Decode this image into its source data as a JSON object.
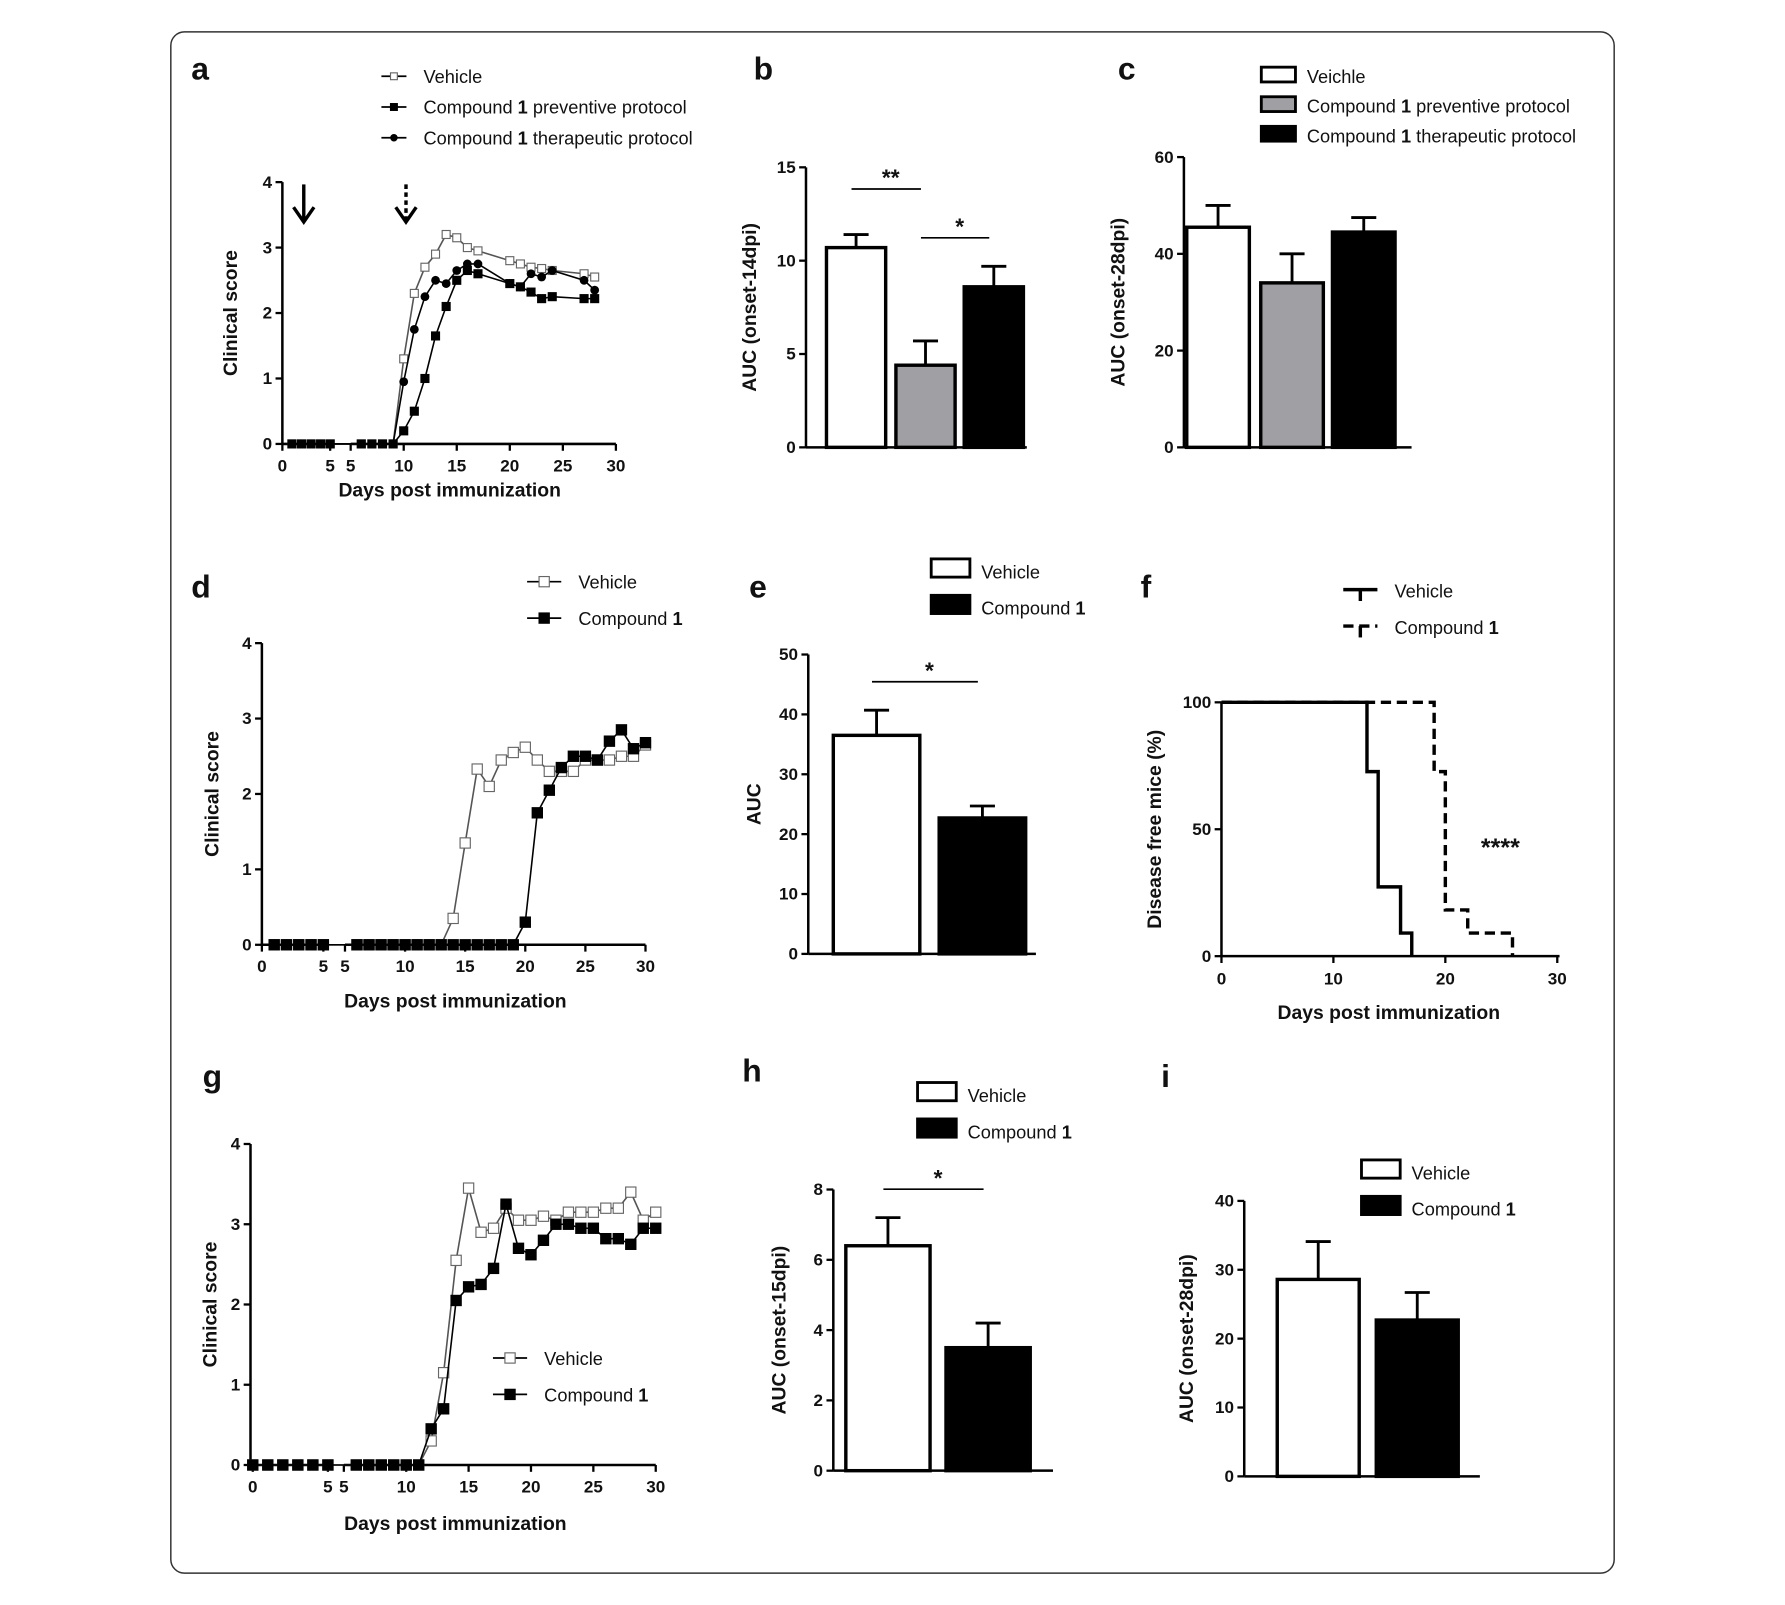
{
  "colors": {
    "white": "#ffffff",
    "grey": "#a0a0a4",
    "black": "#000000"
  },
  "chart_data": [
    {
      "panel": "a",
      "type": "line",
      "xlabel": "Days post immunization",
      "ylabel": "Clinical score",
      "ylim": [
        0,
        4
      ],
      "yticks": [
        0,
        1,
        2,
        3,
        4
      ],
      "xticks_seg1": [
        0,
        5
      ],
      "xticks_seg2": [
        5,
        10,
        15,
        20,
        25,
        30
      ],
      "axis_break": true,
      "arrows": [
        {
          "day": 2,
          "style": "solid"
        },
        {
          "day": 10,
          "style": "dashed"
        }
      ],
      "series": [
        {
          "name": "Vehicle",
          "marker": "open-square",
          "x": [
            1,
            2,
            3,
            4,
            5,
            6,
            7,
            8,
            9,
            10,
            11,
            12,
            13,
            14,
            15,
            16,
            17,
            20,
            21,
            22,
            23,
            24,
            27,
            28
          ],
          "y": [
            0,
            0,
            0,
            0,
            0,
            0,
            0,
            0,
            0,
            1.3,
            2.3,
            2.7,
            2.9,
            3.2,
            3.15,
            3.0,
            2.95,
            2.8,
            2.75,
            2.7,
            2.68,
            2.65,
            2.6,
            2.55
          ]
        },
        {
          "name": "Compound 1 preventive protocol",
          "marker": "filled-square",
          "x": [
            1,
            2,
            3,
            4,
            5,
            6,
            7,
            8,
            9,
            10,
            11,
            12,
            13,
            14,
            15,
            16,
            17,
            20,
            21,
            22,
            23,
            24,
            27,
            28
          ],
          "y": [
            0,
            0,
            0,
            0,
            0,
            0,
            0,
            0,
            0,
            0.2,
            0.5,
            1.0,
            1.65,
            2.1,
            2.5,
            2.65,
            2.6,
            2.45,
            2.4,
            2.32,
            2.22,
            2.25,
            2.22,
            2.22
          ]
        },
        {
          "name": "Compound 1 therapeutic protocol",
          "marker": "filled-circle",
          "x": [
            1,
            2,
            3,
            4,
            5,
            6,
            7,
            8,
            9,
            10,
            11,
            12,
            13,
            14,
            15,
            16,
            17,
            20,
            21,
            22,
            23,
            24,
            27,
            28
          ],
          "y": [
            0,
            0,
            0,
            0,
            0,
            0,
            0,
            0,
            0,
            0.95,
            1.75,
            2.25,
            2.5,
            2.45,
            2.65,
            2.75,
            2.75,
            2.45,
            2.4,
            2.6,
            2.55,
            2.65,
            2.5,
            2.35
          ]
        }
      ]
    },
    {
      "panel": "b",
      "type": "bar",
      "ylabel": "AUC (onset-14dpi)",
      "ylim": [
        0,
        15
      ],
      "yticks": [
        0,
        5,
        10,
        15
      ],
      "series": [
        {
          "name": "Vehicle",
          "value": 10.7,
          "error": 0.7,
          "color": "#ffffff"
        },
        {
          "name": "Compound 1 preventive protocol",
          "value": 4.4,
          "error": 1.3,
          "color": "#a0a0a4"
        },
        {
          "name": "Compound 1 therapeutic protocol",
          "value": 8.6,
          "error": 1.1,
          "color": "#000000"
        }
      ],
      "significance": [
        {
          "from": 0,
          "to": 1,
          "label": "**"
        },
        {
          "from": 1,
          "to": 2,
          "label": "*"
        }
      ]
    },
    {
      "panel": "c",
      "type": "bar",
      "ylabel": "AUC (onset-28dpi)",
      "ylim": [
        0,
        60
      ],
      "yticks": [
        0,
        20,
        40,
        60
      ],
      "series": [
        {
          "name": "Veichle",
          "value": 45.5,
          "error": 4.5,
          "color": "#ffffff"
        },
        {
          "name": "Compound 1 preventive protocol",
          "value": 34,
          "error": 6,
          "color": "#a0a0a4"
        },
        {
          "name": "Compound 1 therapeutic protocol",
          "value": 44.5,
          "error": 3,
          "color": "#000000"
        }
      ],
      "significance": []
    },
    {
      "panel": "d",
      "type": "line",
      "xlabel": "Days post immunization",
      "ylabel": "Clinical score",
      "ylim": [
        0,
        4
      ],
      "yticks": [
        0,
        1,
        2,
        3,
        4
      ],
      "xticks_seg1": [
        0,
        5
      ],
      "xticks_seg2": [
        5,
        10,
        15,
        20,
        25,
        30
      ],
      "axis_break": true,
      "series": [
        {
          "name": "Vehicle",
          "marker": "open-square",
          "x": [
            1,
            2,
            3,
            4,
            5,
            6,
            7,
            8,
            9,
            10,
            11,
            12,
            13,
            14,
            15,
            16,
            17,
            18,
            19,
            20,
            21,
            22,
            23,
            24,
            25,
            26,
            27,
            28,
            29,
            30
          ],
          "y": [
            0,
            0,
            0,
            0,
            0,
            0,
            0,
            0,
            0,
            0,
            0,
            0,
            0,
            0.35,
            1.35,
            2.33,
            2.1,
            2.45,
            2.55,
            2.62,
            2.45,
            2.3,
            2.3,
            2.3,
            2.45,
            2.45,
            2.45,
            2.5,
            2.5,
            2.65
          ]
        },
        {
          "name": "Compound 1",
          "marker": "filled-square",
          "x": [
            1,
            2,
            3,
            4,
            5,
            6,
            7,
            8,
            9,
            10,
            11,
            12,
            13,
            14,
            15,
            16,
            17,
            18,
            19,
            20,
            21,
            22,
            23,
            24,
            25,
            26,
            27,
            28,
            29,
            30
          ],
          "y": [
            0,
            0,
            0,
            0,
            0,
            0,
            0,
            0,
            0,
            0,
            0,
            0,
            0,
            0,
            0,
            0,
            0,
            0,
            0,
            0.3,
            1.75,
            2.05,
            2.35,
            2.5,
            2.5,
            2.45,
            2.7,
            2.85,
            2.6,
            2.68
          ]
        }
      ]
    },
    {
      "panel": "e",
      "type": "bar",
      "ylabel": "AUC",
      "ylim": [
        0,
        50
      ],
      "yticks": [
        0,
        10,
        20,
        30,
        40,
        50
      ],
      "series": [
        {
          "name": "Vehicle",
          "value": 36.5,
          "error": 4.2,
          "color": "#ffffff"
        },
        {
          "name": "Compound 1",
          "value": 22.7,
          "error": 2,
          "color": "#000000"
        }
      ],
      "significance": [
        {
          "from": 0,
          "to": 1,
          "label": "*"
        }
      ]
    },
    {
      "panel": "f",
      "type": "survival",
      "xlabel": "Days post immunization",
      "ylabel": "Disease free mice (%)",
      "xlim": [
        0,
        30
      ],
      "ylim": [
        0,
        100
      ],
      "xticks": [
        0,
        10,
        20,
        30
      ],
      "yticks": [
        0,
        50,
        100
      ],
      "annotation": "****",
      "series": [
        {
          "name": "Vehicle",
          "style": "solid",
          "x": [
            0,
            13,
            14,
            16,
            17
          ],
          "y": [
            100,
            72.7,
            27.3,
            9.1,
            0
          ]
        },
        {
          "name": "Compound 1",
          "style": "dashed",
          "x": [
            0,
            19,
            20,
            22,
            26
          ],
          "y": [
            100,
            72.7,
            18.2,
            9.1,
            0
          ]
        }
      ]
    },
    {
      "panel": "g",
      "type": "line",
      "xlabel": "Days post immunization",
      "ylabel": "Clinical score",
      "ylim": [
        0,
        4
      ],
      "yticks": [
        0,
        1,
        2,
        3,
        4
      ],
      "xticks_seg1": [
        0,
        5
      ],
      "xticks_seg2": [
        5,
        10,
        15,
        20,
        25,
        30
      ],
      "axis_break": true,
      "series": [
        {
          "name": "Vehicle",
          "marker": "open-square",
          "x": [
            0,
            1,
            2,
            3,
            4,
            5,
            6,
            7,
            8,
            9,
            10,
            11,
            12,
            13,
            14,
            15,
            16,
            17,
            18,
            19,
            20,
            21,
            22,
            23,
            24,
            25,
            26,
            27,
            28,
            29,
            30
          ],
          "y": [
            0,
            0,
            0,
            0,
            0,
            0,
            0,
            0,
            0,
            0,
            0,
            0,
            0.3,
            1.15,
            2.55,
            3.45,
            2.9,
            2.95,
            3.2,
            3.05,
            3.05,
            3.1,
            3.05,
            3.15,
            3.15,
            3.15,
            3.2,
            3.2,
            3.4,
            3.05,
            3.15
          ]
        },
        {
          "name": "Compound 1",
          "marker": "filled-square",
          "x": [
            0,
            1,
            2,
            3,
            4,
            5,
            6,
            7,
            8,
            9,
            10,
            11,
            12,
            13,
            14,
            15,
            16,
            17,
            18,
            19,
            20,
            21,
            22,
            23,
            24,
            25,
            26,
            27,
            28,
            29,
            30
          ],
          "y": [
            0,
            0,
            0,
            0,
            0,
            0,
            0,
            0,
            0,
            0,
            0,
            0,
            0.45,
            0.7,
            2.05,
            2.22,
            2.25,
            2.45,
            3.25,
            2.7,
            2.62,
            2.8,
            3.0,
            3.0,
            2.95,
            2.95,
            2.82,
            2.82,
            2.75,
            2.95,
            2.95
          ]
        }
      ]
    },
    {
      "panel": "h",
      "type": "bar",
      "ylabel": "AUC (onset-15dpi)",
      "ylim": [
        0,
        8
      ],
      "yticks": [
        0,
        2,
        4,
        6,
        8
      ],
      "series": [
        {
          "name": "Vehicle",
          "value": 6.4,
          "error": 0.8,
          "color": "#ffffff"
        },
        {
          "name": "Compound 1",
          "value": 3.5,
          "error": 0.7,
          "color": "#000000"
        }
      ],
      "significance": [
        {
          "from": 0,
          "to": 1,
          "label": "*"
        }
      ]
    },
    {
      "panel": "i",
      "type": "bar",
      "ylabel": "AUC (onset-28dpi)",
      "ylim": [
        0,
        40
      ],
      "yticks": [
        0,
        10,
        20,
        30,
        40
      ],
      "series": [
        {
          "name": "Vehicle",
          "value": 28.6,
          "error": 5.5,
          "color": "#ffffff"
        },
        {
          "name": "Compound 1",
          "value": 22.7,
          "error": 4,
          "color": "#000000"
        }
      ],
      "significance": []
    }
  ]
}
